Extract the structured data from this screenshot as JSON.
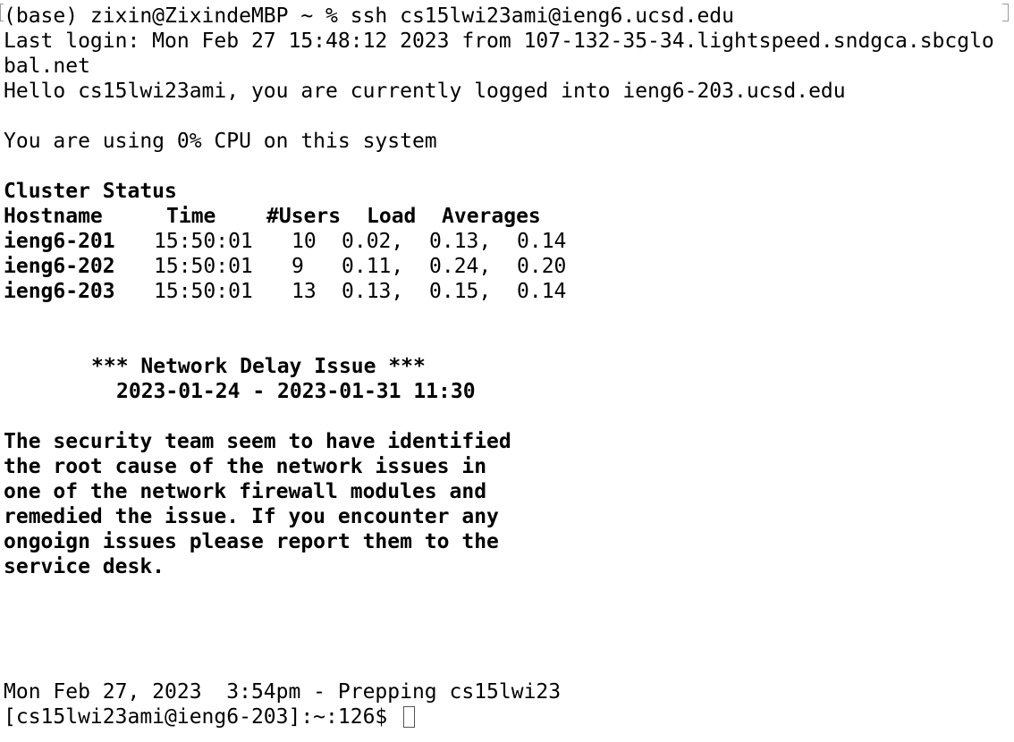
{
  "terminal": {
    "command_line": "(base) zixin@ZixindeMBP ~ % ssh cs15lwi23ami@ieng6.ucsd.edu",
    "last_login_1": "Last login: Mon Feb 27 15:48:12 2023 from 107-132-35-34.lightspeed.sndgca.sbcglo",
    "last_login_2": "bal.net",
    "hello": "Hello cs15lwi23ami, you are currently logged into ieng6-203.ucsd.edu",
    "cpu": "You are using 0% CPU on this system",
    "cluster_title": "Cluster Status",
    "cluster_headers": {
      "hostname": "Hostname",
      "time": "Time",
      "users": "#Users",
      "load": "Load",
      "averages": "Averages"
    },
    "cluster_rows": [
      {
        "host": "ieng6-201",
        "time": "15:50:01",
        "users": "10",
        "l1": "0.02,",
        "l2": "0.13,",
        "l3": "0.14"
      },
      {
        "host": "ieng6-202",
        "time": "15:50:01",
        "users": "9",
        "l1": "0.11,",
        "l2": "0.24,",
        "l3": "0.20"
      },
      {
        "host": "ieng6-203",
        "time": "15:50:01",
        "users": "13",
        "l1": "0.13,",
        "l2": "0.15,",
        "l3": "0.14"
      }
    ],
    "notice_title": "*** Network Delay Issue ***",
    "notice_dates": "2023-01-24 - 2023-01-31 11:30",
    "notice_body": [
      "The security team seem to have identified",
      "the root cause of the network issues in",
      "one of the network firewall modules and",
      "remedied the issue. If you encounter any",
      "ongoign issues please report them to the",
      "service desk."
    ],
    "status_line": "Mon Feb 27, 2023  3:54pm - Prepping cs15lwi23",
    "prompt": "[cs15lwi23ami@ieng6-203]:~:126$ "
  }
}
